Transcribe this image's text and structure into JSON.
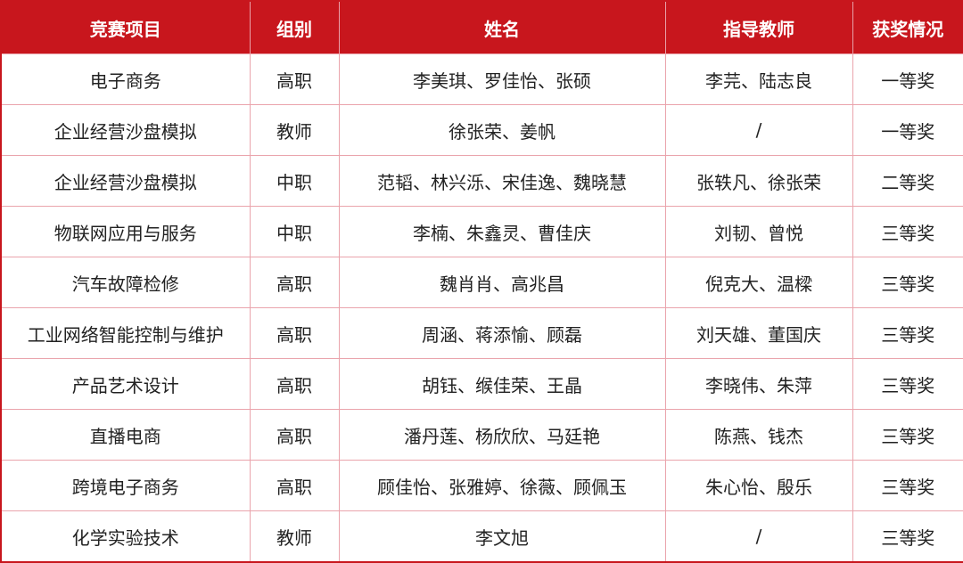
{
  "headers": [
    "竞赛项目",
    "组别",
    "姓名",
    "指导教师",
    "获奖情况"
  ],
  "rows": [
    [
      "电子商务",
      "高职",
      "李美琪、罗佳怡、张硕",
      "李芫、陆志良",
      "一等奖"
    ],
    [
      "企业经营沙盘模拟",
      "教师",
      "徐张荣、姜帆",
      "/",
      "一等奖"
    ],
    [
      "企业经营沙盘模拟",
      "中职",
      "范韬、林兴泺、宋佳逸、魏晓慧",
      "张轶凡、徐张荣",
      "二等奖"
    ],
    [
      "物联网应用与服务",
      "中职",
      "李楠、朱鑫灵、曹佳庆",
      "刘韧、曾悦",
      "三等奖"
    ],
    [
      "汽车故障检修",
      "高职",
      "魏肖肖、高兆昌",
      "倪克大、温樑",
      "三等奖"
    ],
    [
      "工业网络智能控制与维护",
      "高职",
      "周涵、蒋添愉、顾磊",
      "刘天雄、董国庆",
      "三等奖"
    ],
    [
      "产品艺术设计",
      "高职",
      "胡钰、缑佳荣、王晶",
      "李晓伟、朱萍",
      "三等奖"
    ],
    [
      "直播电商",
      "高职",
      "潘丹莲、杨欣欣、马廷艳",
      "陈燕、钱杰",
      "三等奖"
    ],
    [
      "跨境电子商务",
      "高职",
      "顾佳怡、张雅婷、徐薇、顾佩玉",
      "朱心怡、殷乐",
      "三等奖"
    ],
    [
      "化学实验技术",
      "教师",
      "李文旭",
      "/",
      "三等奖"
    ]
  ],
  "colors": {
    "header_bg": "#c8161d",
    "border": "#eaa4ac"
  }
}
